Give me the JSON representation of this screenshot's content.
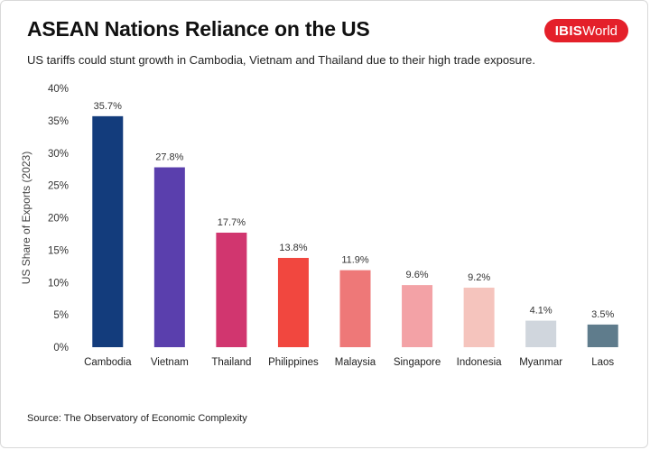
{
  "title": "ASEAN Nations Reliance on the US",
  "subtitle": "US tariffs could stunt growth in Cambodia, Vietnam and Thailand due to their high trade exposure.",
  "logo": {
    "bold": "IBIS",
    "rest": "World",
    "color": "#e4202a"
  },
  "source": "Source: The Observatory of Economic Complexity",
  "chart_data": {
    "type": "bar",
    "title": "",
    "xlabel": "",
    "ylabel": "US Share of  Exports (2023)",
    "ylim": [
      0,
      40
    ],
    "yticks": [
      0,
      5,
      10,
      15,
      20,
      25,
      30,
      35,
      40
    ],
    "ytick_labels": [
      "0%",
      "5%",
      "10%",
      "15%",
      "20%",
      "25%",
      "30%",
      "35%",
      "40%"
    ],
    "grid": false,
    "categories": [
      "Cambodia",
      "Vietnam",
      "Thailand",
      "Philippines",
      "Malaysia",
      "Singapore",
      "Indonesia",
      "Myanmar",
      "Laos"
    ],
    "values": [
      35.7,
      27.8,
      17.7,
      13.8,
      11.9,
      9.6,
      9.2,
      4.1,
      3.5
    ],
    "data_labels": [
      "35.7%",
      "27.8%",
      "17.7%",
      "13.8%",
      "11.9%",
      "9.6%",
      "9.2%",
      "4.1%",
      "3.5%"
    ],
    "colors": [
      "#133c7c",
      "#5a3fad",
      "#d1366f",
      "#f1473f",
      "#ee7878",
      "#f3a2a6",
      "#f5c4bd",
      "#d0d6dd",
      "#5f7c8c"
    ]
  }
}
